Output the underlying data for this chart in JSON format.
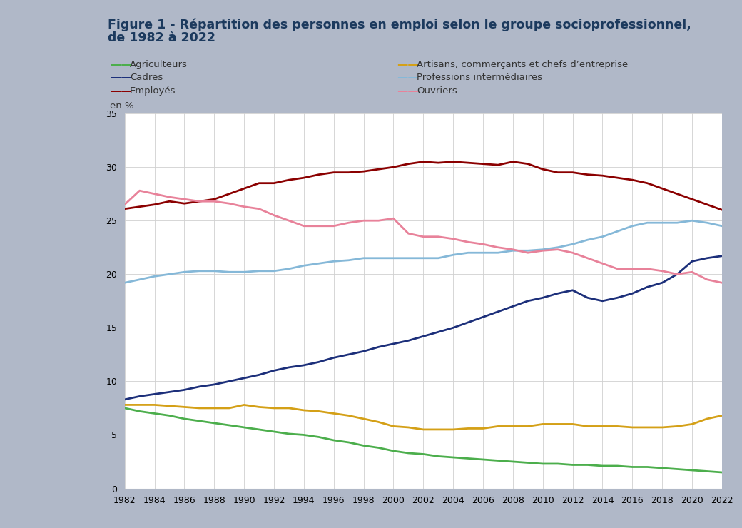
{
  "title_line1": "Figure 1 - Répartition des personnes en emploi selon le groupe socioprofessionnel,",
  "title_line2": "de 1982 à 2022",
  "ylabel": "en %",
  "outer_bg": "#b0b8c8",
  "inner_bg": "#f5f5f5",
  "chart_bg": "#ffffff",
  "years": [
    1982,
    1983,
    1984,
    1985,
    1986,
    1987,
    1988,
    1989,
    1990,
    1991,
    1992,
    1993,
    1994,
    1995,
    1996,
    1997,
    1998,
    1999,
    2000,
    2001,
    2002,
    2003,
    2004,
    2005,
    2006,
    2007,
    2008,
    2009,
    2010,
    2011,
    2012,
    2013,
    2014,
    2015,
    2016,
    2017,
    2018,
    2019,
    2020,
    2021,
    2022
  ],
  "series": [
    {
      "name": "Agriculteurs",
      "color": "#4cae4c",
      "values": [
        7.5,
        7.2,
        7.0,
        6.8,
        6.5,
        6.3,
        6.1,
        5.9,
        5.7,
        5.5,
        5.3,
        5.1,
        5.0,
        4.8,
        4.5,
        4.3,
        4.0,
        3.8,
        3.5,
        3.3,
        3.2,
        3.0,
        2.9,
        2.8,
        2.7,
        2.6,
        2.5,
        2.4,
        2.3,
        2.3,
        2.2,
        2.2,
        2.1,
        2.1,
        2.0,
        2.0,
        1.9,
        1.8,
        1.7,
        1.6,
        1.5
      ]
    },
    {
      "name": "Cadres",
      "color": "#1c2f7a",
      "values": [
        8.3,
        8.6,
        8.8,
        9.0,
        9.2,
        9.5,
        9.7,
        10.0,
        10.3,
        10.6,
        11.0,
        11.3,
        11.5,
        11.8,
        12.2,
        12.5,
        12.8,
        13.2,
        13.5,
        13.8,
        14.2,
        14.6,
        15.0,
        15.5,
        16.0,
        16.5,
        17.0,
        17.5,
        17.8,
        18.2,
        18.5,
        17.8,
        17.5,
        17.8,
        18.2,
        18.8,
        19.2,
        20.0,
        21.2,
        21.5,
        21.7
      ]
    },
    {
      "name": "Employés",
      "color": "#8b0000",
      "values": [
        26.1,
        26.3,
        26.5,
        26.8,
        26.6,
        26.8,
        27.0,
        27.5,
        28.0,
        28.5,
        28.5,
        28.8,
        29.0,
        29.3,
        29.5,
        29.5,
        29.6,
        29.8,
        30.0,
        30.3,
        30.5,
        30.4,
        30.5,
        30.4,
        30.3,
        30.2,
        30.5,
        30.3,
        29.8,
        29.5,
        29.5,
        29.3,
        29.2,
        29.0,
        28.8,
        28.5,
        28.0,
        27.5,
        27.0,
        26.5,
        26.0
      ]
    },
    {
      "name": "Artisans, commerçants et chefs d’entreprise",
      "color": "#d4a017",
      "values": [
        7.8,
        7.8,
        7.8,
        7.7,
        7.6,
        7.5,
        7.5,
        7.5,
        7.8,
        7.6,
        7.5,
        7.5,
        7.3,
        7.2,
        7.0,
        6.8,
        6.5,
        6.2,
        5.8,
        5.7,
        5.5,
        5.5,
        5.5,
        5.6,
        5.6,
        5.8,
        5.8,
        5.8,
        6.0,
        6.0,
        6.0,
        5.8,
        5.8,
        5.8,
        5.7,
        5.7,
        5.7,
        5.8,
        6.0,
        6.5,
        6.8
      ]
    },
    {
      "name": "Professions intermédiaires",
      "color": "#85b8d8",
      "values": [
        19.2,
        19.5,
        19.8,
        20.0,
        20.2,
        20.3,
        20.3,
        20.2,
        20.2,
        20.3,
        20.3,
        20.5,
        20.8,
        21.0,
        21.2,
        21.3,
        21.5,
        21.5,
        21.5,
        21.5,
        21.5,
        21.5,
        21.8,
        22.0,
        22.0,
        22.0,
        22.2,
        22.2,
        22.3,
        22.5,
        22.8,
        23.2,
        23.5,
        24.0,
        24.5,
        24.8,
        24.8,
        24.8,
        25.0,
        24.8,
        24.5
      ]
    },
    {
      "name": "Ouvriers",
      "color": "#e8829a",
      "values": [
        26.5,
        27.8,
        27.5,
        27.2,
        27.0,
        26.8,
        26.8,
        26.6,
        26.3,
        26.1,
        25.5,
        25.0,
        24.5,
        24.5,
        24.5,
        24.8,
        25.0,
        25.0,
        25.2,
        23.8,
        23.5,
        23.5,
        23.3,
        23.0,
        22.8,
        22.5,
        22.3,
        22.0,
        22.2,
        22.3,
        22.0,
        21.5,
        21.0,
        20.5,
        20.5,
        20.5,
        20.3,
        20.0,
        20.2,
        19.5,
        19.2
      ]
    }
  ],
  "ylim": [
    0,
    35
  ],
  "yticks": [
    0,
    5,
    10,
    15,
    20,
    25,
    30,
    35
  ],
  "xticks": [
    1982,
    1984,
    1986,
    1988,
    1990,
    1992,
    1994,
    1996,
    1998,
    2000,
    2002,
    2004,
    2006,
    2008,
    2010,
    2012,
    2014,
    2016,
    2018,
    2020,
    2022
  ],
  "legend_col1": [
    "Agriculteurs",
    "Cadres",
    "Employés"
  ],
  "legend_col2": [
    "Artisans, commerçants et chefs d’entreprise",
    "Professions intermédiaires",
    "Ouvriers"
  ],
  "title_color": "#1c3a5e",
  "text_color": "#333333",
  "grid_color": "#d0d0d0",
  "title_fontsize": 12.5,
  "legend_fontsize": 9.5,
  "tick_fontsize": 9,
  "ylabel_fontsize": 9.5
}
